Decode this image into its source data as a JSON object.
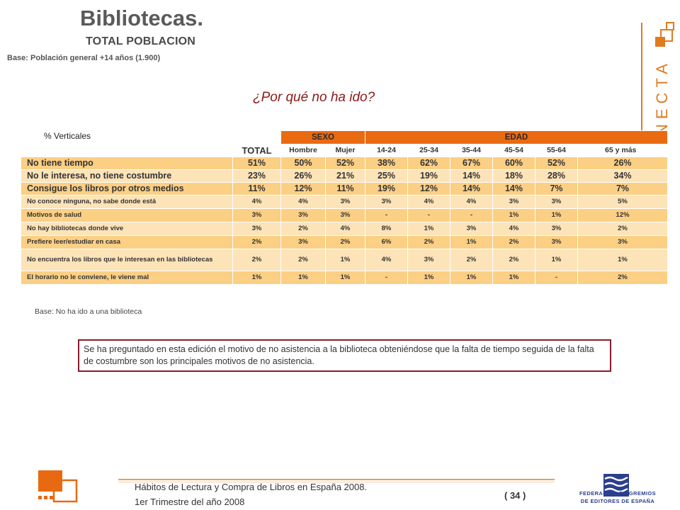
{
  "header": {
    "title": "Bibliotecas.",
    "subtitle": "TOTAL POBLACION",
    "base": "Base: Población general +14 años (1.900)"
  },
  "question": "¿Por qué no ha ido?",
  "table": {
    "percent_label": "% Verticales",
    "group_headers": {
      "sexo": "SEXO",
      "edad": "EDAD"
    },
    "columns": [
      "TOTAL",
      "Hombre",
      "Mujer",
      "14-24",
      "25-34",
      "35-44",
      "45-54",
      "55-64",
      "65 y más"
    ],
    "rows": [
      {
        "label": "No tiene tiempo",
        "values": [
          "51%",
          "50%",
          "52%",
          "38%",
          "62%",
          "67%",
          "60%",
          "52%",
          "26%"
        ]
      },
      {
        "label": "No le interesa, no tiene costumbre",
        "values": [
          "23%",
          "26%",
          "21%",
          "25%",
          "19%",
          "14%",
          "18%",
          "28%",
          "34%"
        ]
      },
      {
        "label": "Consigue los libros por otros medios",
        "values": [
          "11%",
          "12%",
          "11%",
          "19%",
          "12%",
          "14%",
          "14%",
          "7%",
          "7%"
        ]
      },
      {
        "label": "No conoce ninguna, no sabe donde está",
        "values": [
          "4%",
          "4%",
          "3%",
          "3%",
          "4%",
          "4%",
          "3%",
          "3%",
          "5%"
        ]
      },
      {
        "label": "Motivos de salud",
        "values": [
          "3%",
          "3%",
          "3%",
          "-",
          "-",
          "-",
          "1%",
          "1%",
          "12%"
        ]
      },
      {
        "label": "No hay bibliotecas donde vive",
        "values": [
          "3%",
          "2%",
          "4%",
          "8%",
          "1%",
          "3%",
          "4%",
          "3%",
          "2%"
        ]
      },
      {
        "label": "Prefiere leer/estudiar en casa",
        "values": [
          "2%",
          "3%",
          "2%",
          "6%",
          "2%",
          "1%",
          "2%",
          "3%",
          "3%"
        ]
      },
      {
        "label": "No encuentra los libros que le interesan en las bibliotecas",
        "values": [
          "2%",
          "2%",
          "1%",
          "4%",
          "3%",
          "2%",
          "2%",
          "1%",
          "1%"
        ]
      },
      {
        "label": "El horario no le conviene, le viene mal",
        "values": [
          "1%",
          "1%",
          "1%",
          "-",
          "1%",
          "1%",
          "1%",
          "-",
          "2%"
        ]
      }
    ]
  },
  "base_bottom": "Base: No ha ido a una biblioteca",
  "note": "Se ha preguntado en esta edición el motivo de no asistencia a la biblioteca obteniéndose que la falta de tiempo seguida de la falta de costumbre son los principales motivos de no asistencia.",
  "brand": {
    "text": "CONECTA",
    "color": "#e07b20"
  },
  "footer": {
    "title": "Hábitos de Lectura y Compra de Libros en España 2008.",
    "subtitle": "1er Trimestre del año 2008",
    "page": "( 34 )",
    "federation_line1": "FEDERACIÓN DE GREMIOS",
    "federation_line2": "DE EDITORES DE ESPAÑA"
  },
  "colors": {
    "accent": "#ea6a12",
    "row_dark": "#fbcf84",
    "row_light": "#fde3b8",
    "note_border": "#8b1a2e",
    "federation_blue": "#2b3f8f"
  }
}
